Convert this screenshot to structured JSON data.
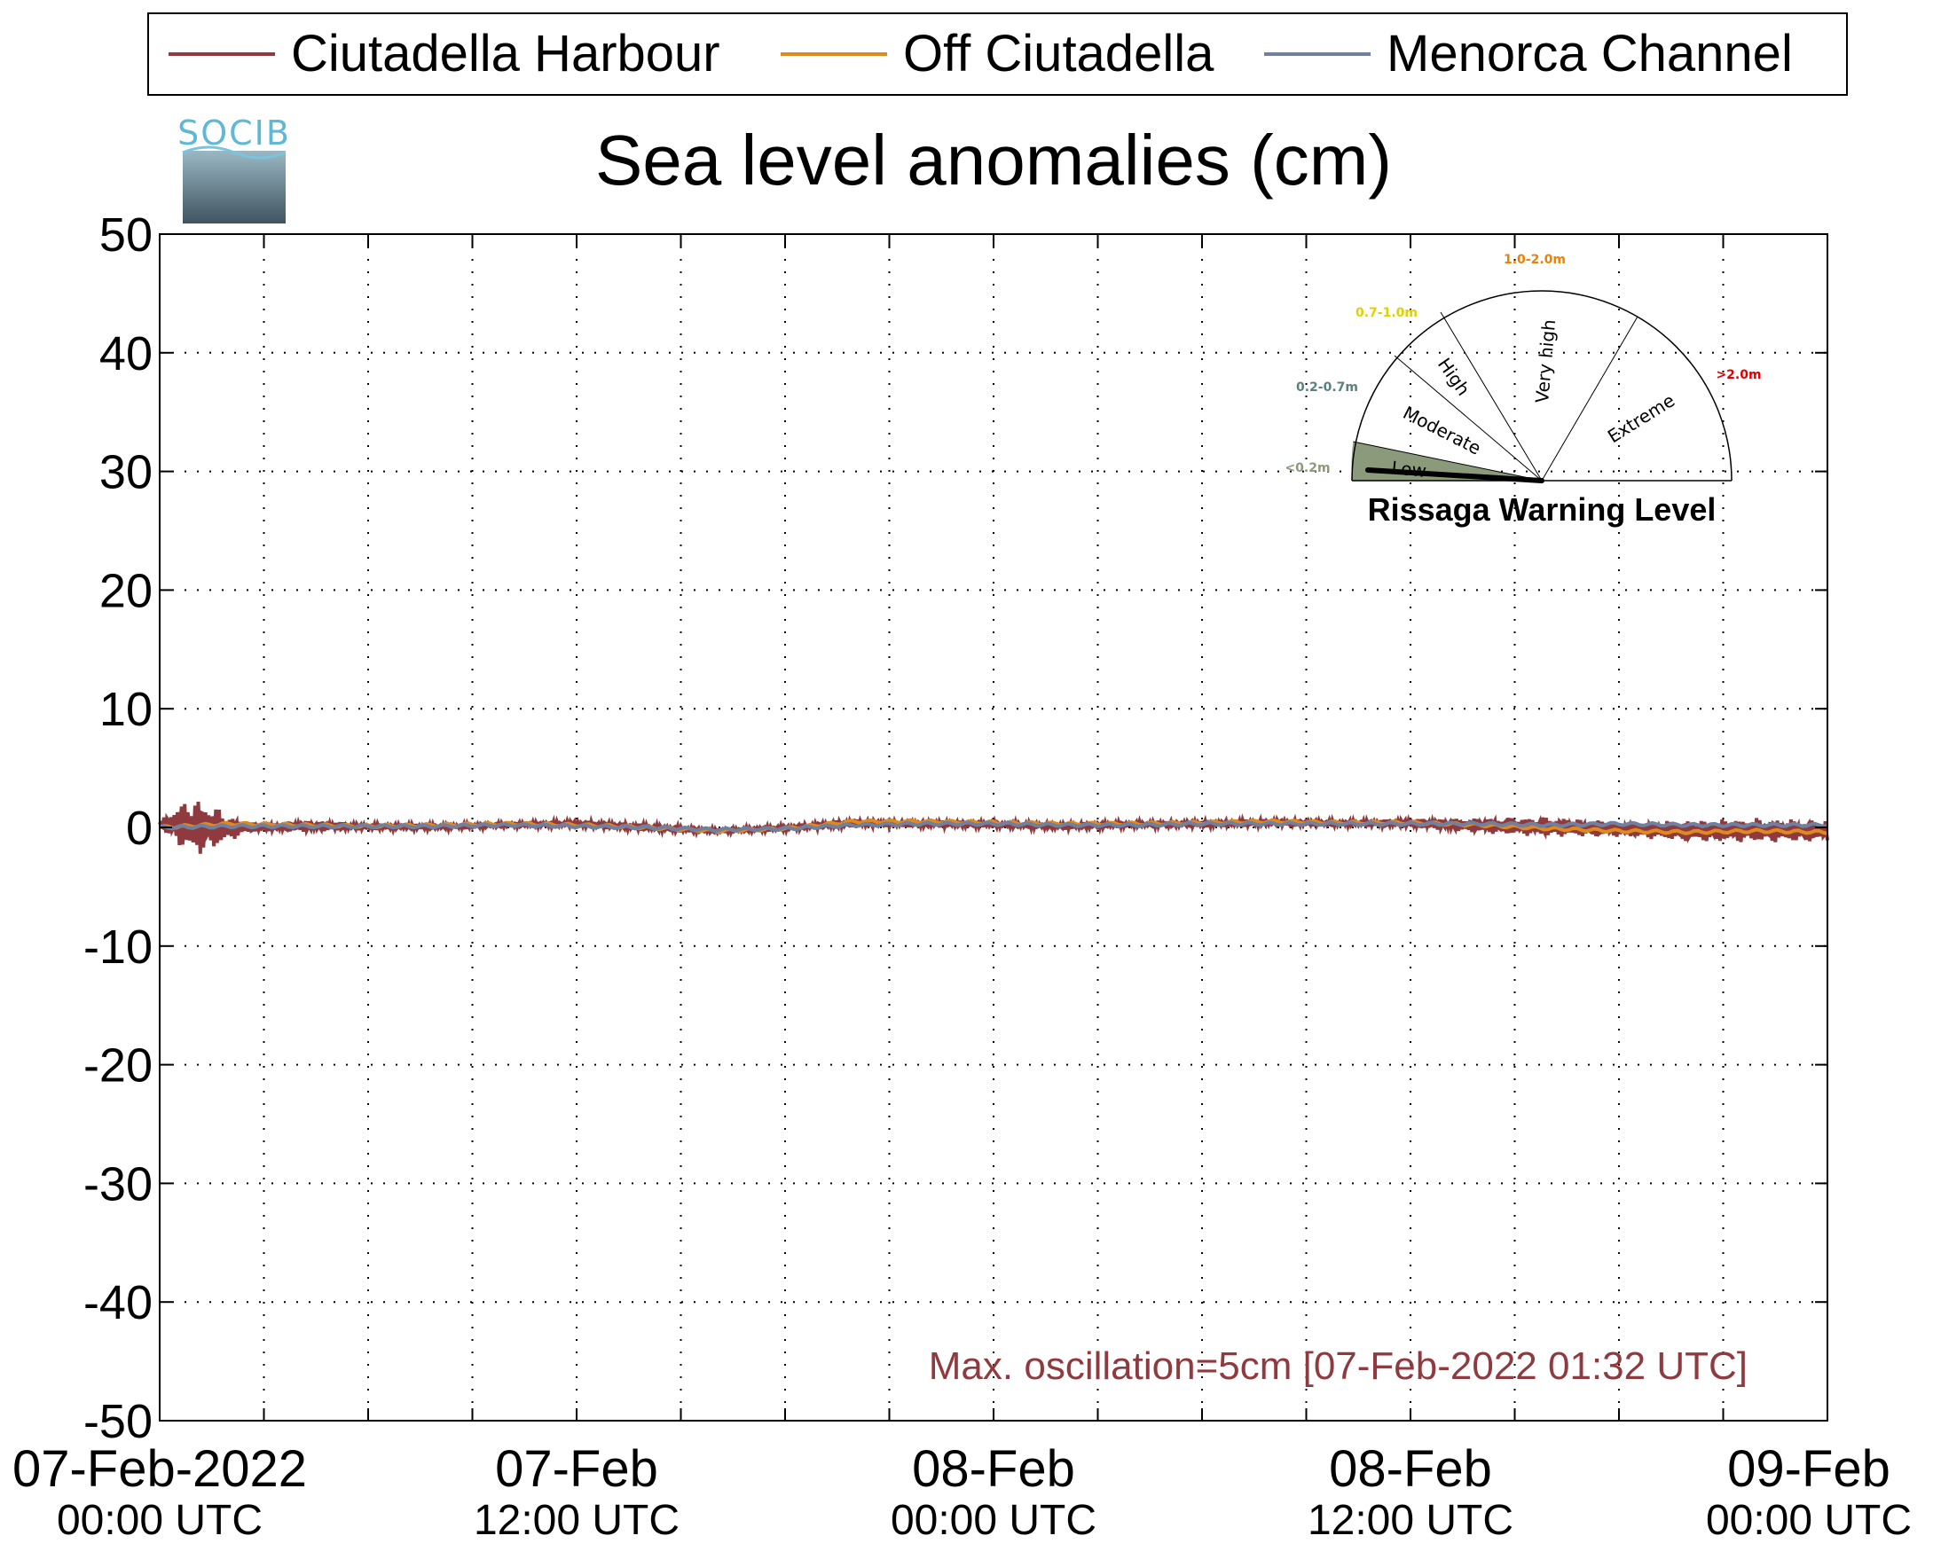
{
  "chart_data": {
    "type": "line",
    "title": "Sea level anomalies (cm)",
    "xlabel": "",
    "ylabel": "",
    "ylim": [
      -50,
      50
    ],
    "yticks": [
      50,
      40,
      30,
      20,
      10,
      0,
      -10,
      -20,
      -30,
      -40,
      -50
    ],
    "xlim": [
      "2022-02-07 00:00",
      "2022-02-09 00:00"
    ],
    "xticks": [
      {
        "date": "07-Feb-2022",
        "time": "00:00 UTC",
        "hour": 0
      },
      {
        "date": "07-Feb",
        "time": "12:00 UTC",
        "hour": 12
      },
      {
        "date": "08-Feb",
        "time": "00:00 UTC",
        "hour": 24
      },
      {
        "date": "08-Feb",
        "time": "12:00 UTC",
        "hour": 36
      },
      {
        "date": "09-Feb",
        "time": "00:00 UTC",
        "hour": 48
      }
    ],
    "grid": true,
    "legend_position": "top",
    "series": [
      {
        "name": "Ciutadella Harbour",
        "color": "#8f3a3e",
        "x_hours": [
          0,
          0.5,
          1,
          1.5,
          2,
          2.5,
          3,
          4,
          5,
          6,
          8,
          10,
          12,
          14,
          16,
          18,
          20,
          22,
          24,
          26,
          28,
          30,
          32,
          34,
          36,
          38,
          40,
          42,
          44,
          46,
          48
        ],
        "y_envelope_min": [
          0,
          -1.5,
          -2.5,
          -2,
          -1.2,
          -0.5,
          -0.3,
          -0.4,
          -0.3,
          -0.2,
          -0.2,
          0,
          0,
          -0.3,
          -0.5,
          -0.3,
          0,
          0,
          0,
          -0.2,
          0,
          0,
          0.1,
          0.1,
          0,
          -0.5,
          -0.8,
          -0.8,
          -1.2,
          -1.3,
          -1.2
        ],
        "y_envelope_max": [
          0.5,
          2,
          2.5,
          2,
          1,
          0.5,
          0.3,
          0.6,
          0.5,
          0.3,
          0.3,
          0.4,
          0.6,
          0.3,
          -0.1,
          0.2,
          0.7,
          0.6,
          0.5,
          0.4,
          0.5,
          0.6,
          0.7,
          0.6,
          0.7,
          0.8,
          0.9,
          0.5,
          0.6,
          0.8,
          0.6
        ]
      },
      {
        "name": "Off Ciutadella",
        "color": "#e08a1e",
        "x_hours": [
          0,
          2,
          4,
          6,
          8,
          10,
          12,
          14,
          16,
          18,
          20,
          22,
          24,
          26,
          28,
          30,
          32,
          34,
          36,
          38,
          40,
          42,
          44,
          46,
          48
        ],
        "y": [
          0,
          0.3,
          0.2,
          0.1,
          0.2,
          0.3,
          0.2,
          0,
          -0.3,
          -0.1,
          0.5,
          0.5,
          0.4,
          0.3,
          0.3,
          0.4,
          0.5,
          0.4,
          0.4,
          0.2,
          -0.1,
          -0.3,
          -0.4,
          -0.3,
          -0.4
        ]
      },
      {
        "name": "Menorca Channel",
        "color": "#7080a0",
        "x_hours": [
          0,
          2,
          4,
          6,
          8,
          10,
          12,
          14,
          16,
          18,
          20,
          22,
          24,
          26,
          28,
          30,
          32,
          34,
          36,
          38,
          40,
          42,
          44,
          46,
          48
        ],
        "y": [
          0,
          0.1,
          0.1,
          0.1,
          0.1,
          0.2,
          0.1,
          0,
          -0.2,
          -0.1,
          0.2,
          0.3,
          0.3,
          0.2,
          0.2,
          0.3,
          0.3,
          0.3,
          0.3,
          0.3,
          0.2,
          0.3,
          0.2,
          0.2,
          0.2
        ]
      }
    ],
    "annotation": "Max. oscillation=5cm [07-Feb-2022 01:32 UTC]",
    "annotation_color": "#8f3a3e"
  },
  "logo": {
    "text": "SOCIB"
  },
  "gauge": {
    "title": "Rissaga Warning Level",
    "current_level": "Low",
    "current_value_m": 0.05,
    "segments": [
      {
        "name": "Low",
        "range": "<0.2m",
        "color": "#8a9a7a"
      },
      {
        "name": "Moderate",
        "range": "0.2-0.7m",
        "color": "#5a8080"
      },
      {
        "name": "High",
        "range": "0.7-1.0m",
        "color": "#e0d000"
      },
      {
        "name": "Very high",
        "range": "1.0-2.0m",
        "color": "#f08000"
      },
      {
        "name": "Extreme",
        "range": ">2.0m",
        "color": "#e00000"
      }
    ]
  }
}
